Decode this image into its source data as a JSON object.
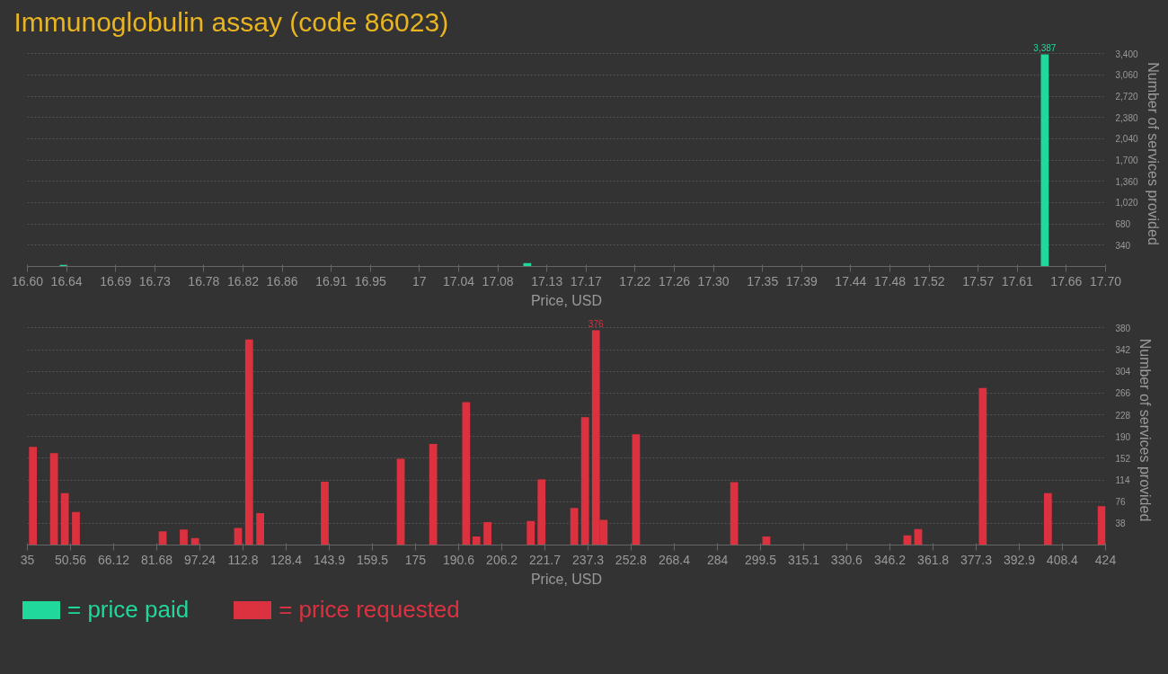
{
  "chart_data": [
    {
      "type": "bar",
      "title": "Immunoglobulin assay (code 86023)",
      "xlabel": "Price, USD",
      "ylabel": "Number of services provided",
      "legend": "bottom",
      "grid": "y",
      "xlim": [
        16.6,
        17.7
      ],
      "ylim": [
        0,
        3400
      ],
      "xticks": [
        {
          "value": 16.6,
          "label": "16.60"
        },
        16.64,
        16.69,
        16.73,
        16.78,
        16.82,
        16.86,
        16.91,
        16.95,
        17,
        17.04,
        17.08,
        17.13,
        17.17,
        17.22,
        17.26,
        {
          "value": 17.3,
          "label": "17.30"
        },
        17.35,
        17.39,
        17.44,
        17.48,
        17.52,
        17.57,
        17.61,
        17.66,
        {
          "value": 17.7,
          "label": "17.70"
        }
      ],
      "yticks": [
        340,
        680,
        {
          "value": 1020,
          "label": "1,020"
        },
        {
          "value": 1360,
          "label": "1,360"
        },
        {
          "value": 1700,
          "label": "1,700"
        },
        {
          "value": 2040,
          "label": "2,040"
        },
        {
          "value": 2380,
          "label": "2,380"
        },
        {
          "value": 2720,
          "label": "2,720"
        },
        {
          "value": 3060,
          "label": "3,060"
        },
        {
          "value": 3400,
          "label": "3,400"
        }
      ],
      "series": [
        {
          "name": "= price paid",
          "color": "#20d89c",
          "x": [
            16.637,
            17.11,
            17.638
          ],
          "values": [
            25,
            55,
            3387
          ],
          "value_labels": [
            null,
            null,
            "3,387"
          ]
        }
      ]
    },
    {
      "type": "bar",
      "xlabel": "Price, USD",
      "ylabel": "Number of services provided",
      "legend": "bottom",
      "grid": "y",
      "xlim": [
        35,
        424
      ],
      "ylim": [
        0,
        380
      ],
      "xticks": [
        35,
        50.56,
        66.12,
        81.68,
        97.24,
        112.8,
        128.4,
        143.9,
        159.5,
        175,
        190.6,
        206.2,
        221.7,
        237.3,
        252.8,
        268.4,
        284,
        299.5,
        315.1,
        330.6,
        346.2,
        361.8,
        377.3,
        392.9,
        408.4,
        424
      ],
      "yticks": [
        38,
        76,
        114,
        152,
        190,
        228,
        266,
        304,
        342,
        380
      ],
      "series": [
        {
          "name": "= price requested",
          "color": "#dc3240",
          "x": [
            37.0,
            44.6,
            48.5,
            52.5,
            83.8,
            91.4,
            95.5,
            111.0,
            115.0,
            119.0,
            142.3,
            169.7,
            181.4,
            193.3,
            197.0,
            201.0,
            216.6,
            220.5,
            232.3,
            236.2,
            240.1,
            242.9,
            254.6,
            290.0,
            301.6,
            352.5,
            356.4,
            379.7,
            403.2,
            422.6
          ],
          "values": [
            172,
            161,
            91,
            58,
            24,
            27,
            12,
            30,
            360,
            56,
            111,
            151,
            177,
            250,
            15,
            40,
            42,
            115,
            65,
            224,
            376,
            44,
            194,
            110,
            15,
            17,
            28,
            275,
            91,
            68
          ],
          "value_labels": [
            null,
            null,
            null,
            null,
            null,
            null,
            null,
            null,
            null,
            null,
            null,
            null,
            null,
            null,
            null,
            null,
            null,
            null,
            null,
            null,
            "376",
            null,
            null,
            null,
            null,
            null,
            null,
            null,
            null,
            null
          ]
        }
      ]
    }
  ]
}
